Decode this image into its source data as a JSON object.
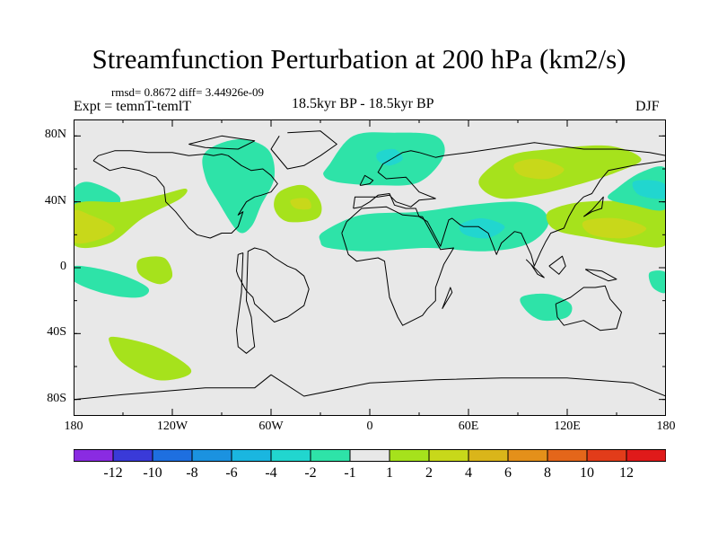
{
  "title": "Streamfunction Perturbation at 200 hPa (km2/s)",
  "stats": "rmsd= 0.8672 diff= 3.44926e-09",
  "left_label": "Expt = temnT-temlT",
  "center_label": "18.5kyr BP - 18.5kyr BP",
  "right_label": "DJF",
  "y_ticks": [
    "80N",
    "40N",
    "0",
    "40S",
    "80S"
  ],
  "y_tick_values": [
    80,
    40,
    0,
    -40,
    -80
  ],
  "x_ticks": [
    "180",
    "120W",
    "60W",
    "0",
    "60E",
    "120E",
    "180"
  ],
  "x_tick_values": [
    -180,
    -120,
    -60,
    0,
    60,
    120,
    180
  ],
  "colorbar": {
    "labels": [
      "-12",
      "-10",
      "-8",
      "-6",
      "-4",
      "-2",
      "-1",
      "1",
      "2",
      "4",
      "6",
      "8",
      "10",
      "12"
    ],
    "colors": [
      "#8a2be2",
      "#3a3ad8",
      "#1e6fe0",
      "#1b92e0",
      "#1ab6e0",
      "#21d6cf",
      "#2ee3a8",
      "#e8e8e8",
      "#a6e21c",
      "#c8d81a",
      "#dab51a",
      "#e4901a",
      "#e4661a",
      "#e23c1a",
      "#e01a1a"
    ]
  },
  "map_colors": {
    "background": "#e8e8e8",
    "neg_light": "#2ee3a8",
    "neg_mid": "#21d6cf",
    "pos_light": "#a6e21c",
    "pos_mid": "#c8d81a",
    "coast": "#000000"
  },
  "regions": [
    {
      "sign": "neg",
      "level": 1,
      "lon": [
        -170,
        -152,
        -158,
        -175,
        -180,
        -180
      ],
      "lat": [
        52,
        43,
        33,
        30,
        36,
        48
      ]
    },
    {
      "sign": "pos",
      "level": 1,
      "lon": [
        -180,
        -150,
        -128,
        -112,
        -115,
        -138,
        -158,
        -180
      ],
      "lat": [
        38,
        40,
        44,
        48,
        42,
        30,
        15,
        14
      ]
    },
    {
      "sign": "pos",
      "level": 2,
      "lon": [
        -180,
        -170,
        -155,
        -165,
        -180
      ],
      "lat": [
        34,
        32,
        24,
        17,
        16
      ]
    },
    {
      "sign": "neg",
      "level": 1,
      "lon": [
        -100,
        -80,
        -62,
        -58,
        -66,
        -72,
        -80,
        -92,
        -100
      ],
      "lat": [
        70,
        78,
        72,
        55,
        38,
        25,
        22,
        40,
        55
      ]
    },
    {
      "sign": "pos",
      "level": 1,
      "lon": [
        -55,
        -40,
        -30,
        -32,
        -50,
        -58
      ],
      "lat": [
        46,
        50,
        40,
        30,
        28,
        36
      ]
    },
    {
      "sign": "pos",
      "level": 2,
      "lon": [
        -48,
        -38,
        -36,
        -45
      ],
      "lat": [
        41,
        42,
        36,
        36
      ]
    },
    {
      "sign": "neg",
      "level": 1,
      "lon": [
        -25,
        -10,
        15,
        40,
        45,
        30,
        5,
        -20,
        -28
      ],
      "lat": [
        62,
        80,
        82,
        80,
        68,
        52,
        50,
        52,
        56
      ]
    },
    {
      "sign": "neg",
      "level": 2,
      "lon": [
        5,
        15,
        20,
        12,
        5
      ],
      "lat": [
        70,
        72,
        66,
        62,
        65
      ]
    },
    {
      "sign": "neg",
      "level": 1,
      "lon": [
        -28,
        -5,
        30,
        60,
        90,
        105,
        108,
        95,
        70,
        35,
        0,
        -25,
        -30
      ],
      "lat": [
        22,
        32,
        34,
        38,
        40,
        35,
        25,
        14,
        10,
        12,
        10,
        12,
        16
      ]
    },
    {
      "sign": "neg",
      "level": 2,
      "lon": [
        55,
        68,
        82,
        72,
        58
      ],
      "lat": [
        26,
        30,
        25,
        18,
        20
      ]
    },
    {
      "sign": "pos",
      "level": 1,
      "lon": [
        68,
        85,
        110,
        145,
        165,
        150,
        125,
        100,
        80,
        68
      ],
      "lat": [
        56,
        68,
        72,
        74,
        66,
        58,
        50,
        44,
        42,
        48
      ]
    },
    {
      "sign": "pos",
      "level": 2,
      "lon": [
        88,
        102,
        118,
        108,
        92
      ],
      "lat": [
        63,
        66,
        60,
        54,
        56
      ]
    },
    {
      "sign": "pos",
      "level": 1,
      "lon": [
        110,
        130,
        165,
        180,
        180,
        160,
        135,
        115,
        108
      ],
      "lat": [
        35,
        40,
        40,
        36,
        14,
        14,
        18,
        22,
        28
      ]
    },
    {
      "sign": "pos",
      "level": 2,
      "lon": [
        130,
        150,
        168,
        155,
        135
      ],
      "lat": [
        28,
        30,
        24,
        18,
        20
      ]
    },
    {
      "sign": "neg",
      "level": 1,
      "lon": [
        150,
        165,
        180,
        180,
        160,
        145
      ],
      "lat": [
        48,
        58,
        60,
        36,
        38,
        42
      ]
    },
    {
      "sign": "neg",
      "level": 2,
      "lon": [
        160,
        172,
        180,
        180,
        164
      ],
      "lat": [
        52,
        53,
        50,
        42,
        44
      ]
    },
    {
      "sign": "neg",
      "level": 1,
      "lon": [
        -180,
        -155,
        -135,
        -140,
        -160,
        -180
      ],
      "lat": [
        1,
        -3,
        -12,
        -18,
        -16,
        -8
      ]
    },
    {
      "sign": "neg",
      "level": 1,
      "lon": [
        170,
        180,
        180,
        172
      ],
      "lat": [
        -3,
        -3,
        -15,
        -12
      ]
    },
    {
      "sign": "pos",
      "level": 1,
      "lon": [
        -140,
        -125,
        -120,
        -128,
        -140
      ],
      "lat": [
        5,
        6,
        -5,
        -10,
        -4
      ]
    },
    {
      "sign": "pos",
      "level": 1,
      "lon": [
        -155,
        -130,
        -110,
        -112,
        -130,
        -150,
        -158
      ],
      "lat": [
        -42,
        -48,
        -60,
        -66,
        -68,
        -58,
        -46
      ]
    },
    {
      "sign": "neg",
      "level": 1,
      "lon": [
        92,
        108,
        122,
        120,
        105,
        95
      ],
      "lat": [
        -18,
        -16,
        -22,
        -30,
        -32,
        -26
      ]
    }
  ],
  "coastlines": [
    {
      "lon": [
        -168,
        -158,
        -150,
        -140,
        -130,
        -125,
        -124,
        -118,
        -110,
        -105,
        -97,
        -90,
        -84,
        -80,
        -77,
        -80,
        -75,
        -70,
        -66,
        -60,
        -56,
        -60,
        -65,
        -72,
        -78,
        -82,
        -86,
        -90,
        -95,
        -100,
        -110,
        -120,
        -125,
        -135,
        -145,
        -155,
        -165,
        -168
      ],
      "lat": [
        65,
        59,
        61,
        59,
        55,
        49,
        40,
        34,
        24,
        20,
        18,
        21,
        21,
        25,
        34,
        32,
        40,
        43,
        44,
        46,
        51,
        56,
        60,
        59,
        62,
        65,
        68,
        69,
        68,
        69,
        68,
        70,
        70,
        70,
        71,
        71,
        68,
        65
      ]
    },
    {
      "lon": [
        -110,
        -90,
        -70,
        -80,
        -100,
        -110
      ],
      "lat": [
        75,
        80,
        77,
        72,
        73,
        75
      ]
    },
    {
      "lon": [
        -50,
        -30,
        -20,
        -30,
        -40,
        -50,
        -60,
        -55
      ],
      "lat": [
        82,
        83,
        75,
        68,
        62,
        60,
        72,
        80
      ]
    },
    {
      "lon": [
        -77,
        -80,
        -81,
        -80,
        -75,
        -71,
        -70,
        -58,
        -50,
        -40,
        -37,
        -40,
        -45,
        -50,
        -58,
        -63,
        -66,
        -70,
        -74,
        -75,
        -72,
        -71,
        -70,
        -75,
        -80,
        -81,
        -78,
        -77
      ],
      "lat": [
        9,
        8,
        -2,
        -5,
        -14,
        -18,
        -22,
        -33,
        -30,
        -23,
        -13,
        -5,
        -1,
        1,
        6,
        10,
        11,
        12,
        10,
        -20,
        -30,
        -40,
        -48,
        -52,
        -48,
        -38,
        -15,
        9
      ]
    },
    {
      "lon": [
        -17,
        -14,
        -5,
        10,
        20,
        32,
        43,
        51,
        45,
        40,
        40,
        35,
        32,
        20,
        17,
        12,
        10,
        9,
        5,
        -8,
        -13,
        -17
      ],
      "lat": [
        21,
        28,
        36,
        37,
        32,
        31,
        11,
        12,
        2,
        -12,
        -20,
        -25,
        -29,
        -35,
        -30,
        -18,
        -3,
        4,
        6,
        4,
        8,
        21
      ]
    },
    {
      "lon": [
        -10,
        -9,
        0,
        5,
        12,
        16,
        25,
        30,
        40,
        30,
        22,
        10,
        5,
        8,
        20,
        25,
        30,
        40,
        45,
        60,
        80,
        100,
        130,
        150,
        170,
        180,
        180,
        160,
        145,
        140,
        135,
        130,
        125,
        121,
        118,
        110,
        107,
        104,
        100,
        98,
        92,
        88,
        80,
        77,
        72,
        66,
        57,
        55,
        50,
        48,
        43,
        35,
        30,
        28,
        22,
        15,
        12,
        5,
        0,
        -5,
        -10
      ],
      "lat": [
        36,
        43,
        43,
        43,
        44,
        40,
        37,
        41,
        42,
        46,
        55,
        54,
        58,
        63,
        70,
        71,
        70,
        67,
        68,
        70,
        73,
        76,
        72,
        72,
        70,
        68,
        65,
        62,
        59,
        53,
        45,
        43,
        38,
        31,
        24,
        21,
        16,
        10,
        1,
        8,
        21,
        22,
        15,
        8,
        21,
        25,
        25,
        26,
        30,
        29,
        13,
        28,
        31,
        36,
        36,
        38,
        45,
        44,
        40,
        37,
        36
      ]
    },
    {
      "lon": [
        113,
        122,
        130,
        137,
        143,
        146,
        153,
        150,
        140,
        130,
        118,
        114,
        113
      ],
      "lat": [
        -22,
        -18,
        -12,
        -12,
        -11,
        -19,
        -27,
        -37,
        -38,
        -32,
        -35,
        -30,
        -22
      ]
    },
    {
      "lon": [
        -6,
        -3,
        2,
        0,
        -5,
        -6
      ],
      "lat": [
        50,
        56,
        53,
        51,
        50,
        50
      ]
    },
    {
      "lon": [
        130,
        135,
        141,
        142,
        135,
        130
      ],
      "lat": [
        31,
        34,
        36,
        43,
        35,
        31
      ]
    },
    {
      "lon": [
        95,
        105,
        106,
        102,
        98,
        95
      ],
      "lat": [
        5,
        -5,
        -6,
        -4,
        2,
        5
      ]
    },
    {
      "lon": [
        109,
        117,
        119,
        115,
        109
      ],
      "lat": [
        1,
        7,
        1,
        -4,
        1
      ]
    },
    {
      "lon": [
        131,
        141,
        150,
        145,
        136,
        131
      ],
      "lat": [
        -1,
        -2,
        -7,
        -8,
        -4,
        -1
      ]
    },
    {
      "lon": [
        44,
        50,
        49,
        44
      ],
      "lat": [
        -25,
        -15,
        -12,
        -25
      ]
    },
    {
      "lon": [
        -180,
        -150,
        -100,
        -70,
        -60,
        -40,
        0,
        40,
        80,
        120,
        160,
        180
      ],
      "lat": [
        -80,
        -77,
        -73,
        -73,
        -65,
        -78,
        -70,
        -68,
        -67,
        -67,
        -70,
        -78
      ]
    }
  ]
}
